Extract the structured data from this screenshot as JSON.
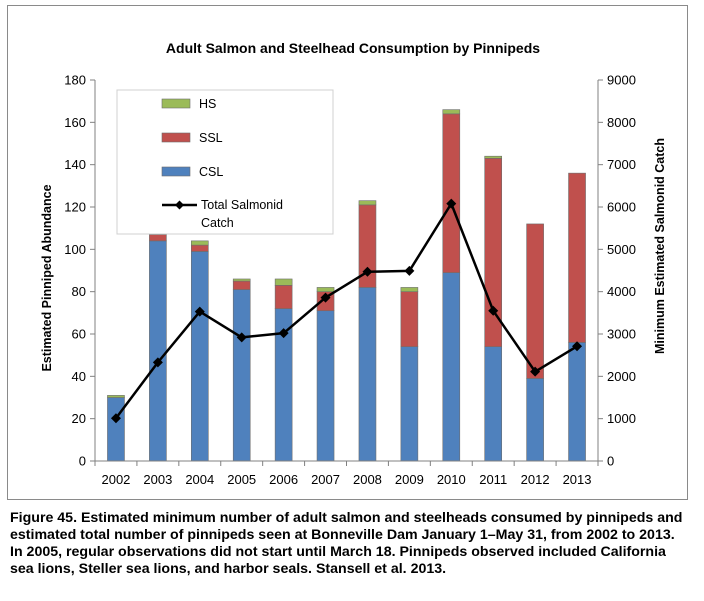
{
  "chart_data": {
    "type": "bar",
    "stacked": true,
    "title": "Adult Salmon and Steelhead Consumption by Pinnipeds",
    "categories": [
      "2002",
      "2003",
      "2004",
      "2005",
      "2006",
      "2007",
      "2008",
      "2009",
      "2010",
      "2011",
      "2012",
      "2013"
    ],
    "ylabel_left": "Estimated Pinniped Abundance",
    "ylabel_right": "Minimum Estimated Salmonid Catch",
    "ylim_left": [
      0,
      180
    ],
    "yticks_left": [
      0,
      20,
      40,
      60,
      80,
      100,
      120,
      140,
      160,
      180
    ],
    "ylim_right": [
      0,
      9000
    ],
    "yticks_right": [
      0,
      1000,
      2000,
      3000,
      4000,
      5000,
      6000,
      7000,
      8000,
      9000
    ],
    "grid": false,
    "legend_position": "top-left",
    "series": [
      {
        "name": "CSL",
        "kind": "bar",
        "color": "#4f81bd",
        "values": [
          30,
          104,
          99,
          81,
          72,
          71,
          82,
          54,
          89,
          54,
          39,
          56
        ]
      },
      {
        "name": "SSL",
        "kind": "bar",
        "color": "#c0504d",
        "values": [
          0,
          3,
          3,
          4,
          11,
          9,
          39,
          26,
          75,
          89,
          73,
          80
        ]
      },
      {
        "name": "HS",
        "kind": "bar",
        "color": "#9bbb59",
        "values": [
          1,
          2,
          2,
          1,
          3,
          2,
          2,
          2,
          2,
          1,
          0,
          0
        ]
      },
      {
        "name": "Total Salmonid Catch",
        "kind": "line",
        "axis": "right",
        "color": "#000000",
        "values": [
          1010,
          2330,
          3530,
          2920,
          3020,
          3860,
          4470,
          4490,
          6080,
          3550,
          2110,
          2710
        ]
      }
    ]
  },
  "caption": "Figure 45.  Estimated minimum number of adult salmon and steelheads consumed by pinnipeds and estimated total number of pinnipeds seen at Bonneville Dam January 1–May 31, from 2002 to 2013.  In 2005, regular observations did not start until March 18. Pinnipeds observed included California sea lions, Steller sea lions, and harbor seals. Stansell et al. 2013."
}
